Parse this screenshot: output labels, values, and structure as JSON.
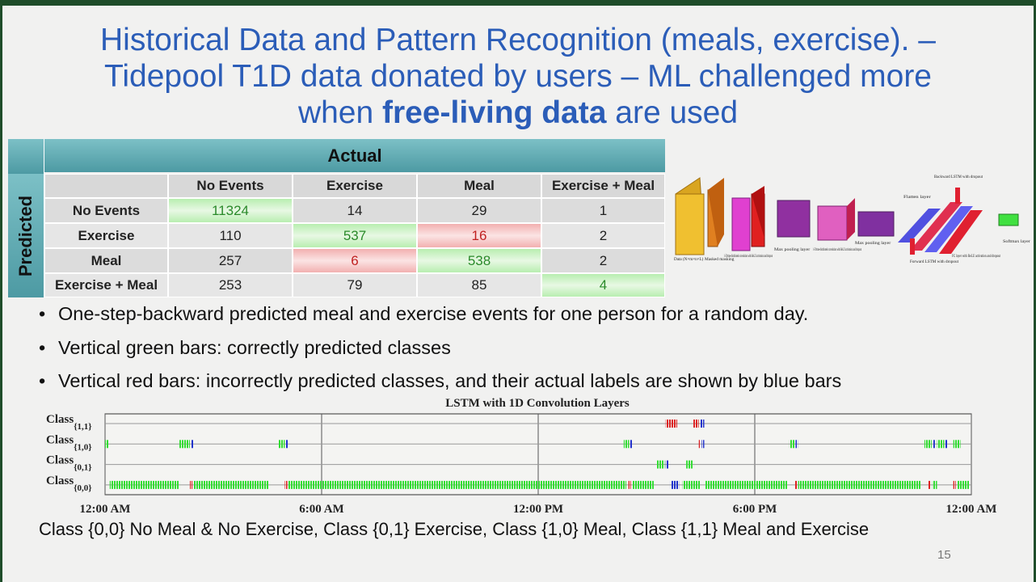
{
  "title": {
    "line1": "Historical Data and Pattern Recognition (meals, exercise).  –",
    "line2": "Tidepool T1D data donated by users – ML challenged more",
    "line3_pre": "when",
    "line3_bold": "free-living data",
    "line3_post": "are used"
  },
  "table": {
    "actual_header": "Actual",
    "predicted_header": "Predicted",
    "columns": [
      "No Events",
      "Exercise",
      "Meal",
      "Exercise + Meal"
    ],
    "rows": [
      [
        "No Events",
        11324,
        14,
        29,
        1
      ],
      [
        "Exercise",
        110,
        537,
        16,
        2
      ],
      [
        "Meal",
        257,
        6,
        538,
        2
      ],
      [
        "Exercise + Meal",
        253,
        79,
        85,
        4
      ]
    ]
  },
  "network_labels": [
    "Data (N×m×n×L)",
    "Masked masking",
    "1-D time-distributed convolution with ReLU activation and dropout",
    "Max pooling layer",
    "1-D time-distributed convolution with ReLU activation and dropout",
    "Max pooling layer",
    "Flatten layer",
    "Backward LSTM with dropout",
    "Forward LSTM with dropout",
    "FC layer with ReLU activation and dropout",
    "Softmax layer"
  ],
  "bullets": [
    "One-step-backward predicted meal and exercise events for one person for a random day.",
    "Vertical green bars: correctly predicted classes",
    "Vertical red bars: incorrectly predicted classes, and their actual labels are shown by blue bars"
  ],
  "event_chart": {
    "title": "LSTM with 1D Convolution Layers",
    "xlim": [
      0,
      24
    ],
    "xticks": [
      {
        "value": 0,
        "label": "12:00 AM"
      },
      {
        "value": 6,
        "label": "6:00 AM"
      },
      {
        "value": 12,
        "label": "12:00 PM"
      },
      {
        "value": 18,
        "label": "6:00 PM"
      },
      {
        "value": 24,
        "label": "12:00 AM"
      }
    ],
    "rows": [
      {
        "label": "Class",
        "sub": "{1,1}"
      },
      {
        "label": "Class",
        "sub": "{1,0}"
      },
      {
        "label": "Class",
        "sub": "{0,1}"
      },
      {
        "label": "Class",
        "sub": "{0,0}"
      }
    ],
    "colors": {
      "correct": "#33dd33",
      "incorrect": "#dd2222",
      "actual": "#2233cc"
    },
    "segments": [
      {
        "row": 3,
        "kind": "correct",
        "start": 0.13,
        "end": 2.04
      },
      {
        "row": 3,
        "kind": "incorrect",
        "start": 2.35,
        "end": 2.42
      },
      {
        "row": 3,
        "kind": "correct",
        "start": 2.46,
        "end": 4.54
      },
      {
        "row": 3,
        "kind": "incorrect",
        "start": 4.98,
        "end": 5.05
      },
      {
        "row": 3,
        "kind": "correct",
        "start": 5.06,
        "end": 14.44
      },
      {
        "row": 3,
        "kind": "incorrect",
        "start": 14.5,
        "end": 14.57
      },
      {
        "row": 3,
        "kind": "correct",
        "start": 14.6,
        "end": 15.2
      },
      {
        "row": 3,
        "kind": "actual",
        "start": 15.67,
        "end": 15.9
      },
      {
        "row": 3,
        "kind": "correct",
        "start": 16.0,
        "end": 16.5
      },
      {
        "row": 3,
        "kind": "correct",
        "start": 16.63,
        "end": 18.9
      },
      {
        "row": 3,
        "kind": "incorrect",
        "start": 19.1,
        "end": 19.17
      },
      {
        "row": 3,
        "kind": "correct",
        "start": 19.2,
        "end": 22.6
      },
      {
        "row": 3,
        "kind": "incorrect",
        "start": 22.8,
        "end": 22.87
      },
      {
        "row": 3,
        "kind": "correct",
        "start": 22.92,
        "end": 23.05
      },
      {
        "row": 3,
        "kind": "incorrect",
        "start": 23.5,
        "end": 23.57
      },
      {
        "row": 3,
        "kind": "correct",
        "start": 23.6,
        "end": 23.95
      },
      {
        "row": 2,
        "kind": "correct",
        "start": 15.27,
        "end": 15.5
      },
      {
        "row": 2,
        "kind": "actual",
        "start": 15.53,
        "end": 15.62
      },
      {
        "row": 2,
        "kind": "correct",
        "start": 16.1,
        "end": 16.3
      },
      {
        "row": 1,
        "kind": "correct",
        "start": 0.0,
        "end": 0.1
      },
      {
        "row": 1,
        "kind": "correct",
        "start": 2.06,
        "end": 2.35
      },
      {
        "row": 1,
        "kind": "actual",
        "start": 2.38,
        "end": 2.44
      },
      {
        "row": 1,
        "kind": "correct",
        "start": 4.8,
        "end": 4.98
      },
      {
        "row": 1,
        "kind": "actual",
        "start": 5.0,
        "end": 5.06
      },
      {
        "row": 1,
        "kind": "correct",
        "start": 14.37,
        "end": 14.52
      },
      {
        "row": 1,
        "kind": "actual",
        "start": 14.55,
        "end": 14.61
      },
      {
        "row": 1,
        "kind": "incorrect",
        "start": 16.45,
        "end": 16.5
      },
      {
        "row": 1,
        "kind": "actual",
        "start": 16.53,
        "end": 16.6
      },
      {
        "row": 1,
        "kind": "correct",
        "start": 18.96,
        "end": 19.1
      },
      {
        "row": 1,
        "kind": "actual",
        "start": 19.13,
        "end": 19.19
      },
      {
        "row": 1,
        "kind": "correct",
        "start": 22.7,
        "end": 22.9
      },
      {
        "row": 1,
        "kind": "actual",
        "start": 22.93,
        "end": 22.99
      },
      {
        "row": 1,
        "kind": "correct",
        "start": 23.05,
        "end": 23.25
      },
      {
        "row": 1,
        "kind": "actual",
        "start": 23.27,
        "end": 23.33
      },
      {
        "row": 1,
        "kind": "correct",
        "start": 23.5,
        "end": 23.7
      },
      {
        "row": 0,
        "kind": "incorrect",
        "start": 15.53,
        "end": 15.85
      },
      {
        "row": 0,
        "kind": "incorrect",
        "start": 16.3,
        "end": 16.45
      },
      {
        "row": 0,
        "kind": "actual",
        "start": 16.48,
        "end": 16.6
      }
    ]
  },
  "legend_line": "Class {0,0} No Meal & No Exercise, Class {0,1} Exercise, Class {1,0} Meal, Class {1,1} Meal and Exercise",
  "page_number": "15"
}
